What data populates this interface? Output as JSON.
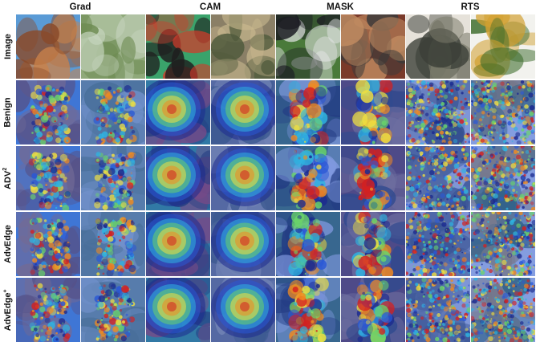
{
  "column_groups": [
    {
      "label": "Grad"
    },
    {
      "label": "CAM"
    },
    {
      "label": "MASK"
    },
    {
      "label": "RTS"
    }
  ],
  "rows": [
    {
      "label": "Image",
      "sup": ""
    },
    {
      "label": "Benign",
      "sup": ""
    },
    {
      "label": "ADV",
      "sup": "2"
    },
    {
      "label": "AdvEdge",
      "sup": ""
    },
    {
      "label": "AdvEdge",
      "sup": "+"
    }
  ],
  "images": [
    {
      "subject": "canyon arch",
      "colors": [
        "#5a9bd6",
        "#c9824a",
        "#8a4a2a"
      ]
    },
    {
      "subject": "crop-circle field",
      "colors": [
        "#8fa97a",
        "#6d8b52",
        "#c8d6c0"
      ]
    },
    {
      "subject": "fishing reel",
      "colors": [
        "#3aa36b",
        "#1f1f1f",
        "#d23a2a"
      ]
    },
    {
      "subject": "leopard",
      "colors": [
        "#8a7f66",
        "#c9b98f",
        "#4f5a3c"
      ]
    },
    {
      "subject": "magpie bird",
      "colors": [
        "#4a7a3a",
        "#1b1b22",
        "#e8e8ea"
      ]
    },
    {
      "subject": "pay phone",
      "colors": [
        "#7a3a2a",
        "#c08a60",
        "#3a3a3a"
      ]
    },
    {
      "subject": "glass bottle",
      "colors": [
        "#e6e2da",
        "#3c4038",
        "#7a7a6a"
      ]
    },
    {
      "subject": "pineapple",
      "colors": [
        "#f2f2ee",
        "#d2a030",
        "#3a6a2a"
      ]
    }
  ],
  "heatmap_palette": [
    "#1b2a8f",
    "#2a58d6",
    "#2fb3e0",
    "#6ad46a",
    "#f0e040",
    "#f08a20",
    "#d42020"
  ]
}
